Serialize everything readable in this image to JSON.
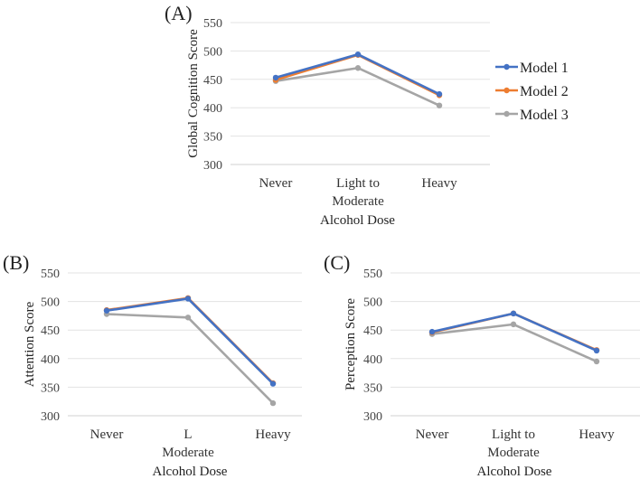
{
  "chart_data": [
    {
      "type": "line",
      "panel_label": "(A)",
      "categories": [
        [
          "Never"
        ],
        [
          "Light to",
          "Moderate"
        ],
        [
          "Heavy"
        ]
      ],
      "xlabel": "Alcohol Dose",
      "ylabel": "Global Cognition Score",
      "ylim": [
        300,
        550
      ],
      "yticks": [
        300,
        350,
        400,
        450,
        500,
        550
      ],
      "grid": true,
      "legend": "right",
      "series": [
        {
          "name": "Model 1",
          "color": "#4472C4",
          "values": [
            453,
            494,
            424
          ]
        },
        {
          "name": "Model 2",
          "color": "#ED7D31",
          "values": [
            449,
            493,
            422
          ]
        },
        {
          "name": "Model 3",
          "color": "#A5A5A5",
          "values": [
            447,
            470,
            404
          ]
        }
      ]
    },
    {
      "type": "line",
      "panel_label": "(B)",
      "categories": [
        [
          "Never"
        ],
        [
          "L",
          "Moderate"
        ],
        [
          "Heavy"
        ]
      ],
      "xlabel": "Alcohol Dose",
      "ylabel": "Attention Score",
      "ylim": [
        300,
        550
      ],
      "yticks": [
        300,
        350,
        400,
        450,
        500,
        550
      ],
      "grid": true,
      "series": [
        {
          "name": "Model 1",
          "color": "#4472C4",
          "values": [
            484,
            505,
            356
          ]
        },
        {
          "name": "Model 2",
          "color": "#ED7D31",
          "values": [
            485,
            506,
            357
          ]
        },
        {
          "name": "Model 3",
          "color": "#A5A5A5",
          "values": [
            478,
            472,
            322
          ]
        }
      ]
    },
    {
      "type": "line",
      "panel_label": "(C)",
      "categories": [
        [
          "Never"
        ],
        [
          "Light to",
          "Moderate"
        ],
        [
          "Heavy"
        ]
      ],
      "xlabel": "Alcohol Dose",
      "ylabel": "Perception Score",
      "ylim": [
        300,
        550
      ],
      "yticks": [
        300,
        350,
        400,
        450,
        500,
        550
      ],
      "grid": true,
      "series": [
        {
          "name": "Model 1",
          "color": "#4472C4",
          "values": [
            447,
            479,
            414
          ]
        },
        {
          "name": "Model 2",
          "color": "#ED7D31",
          "values": [
            446,
            479,
            415
          ]
        },
        {
          "name": "Model 3",
          "color": "#A5A5A5",
          "values": [
            443,
            460,
            395
          ]
        }
      ]
    }
  ]
}
